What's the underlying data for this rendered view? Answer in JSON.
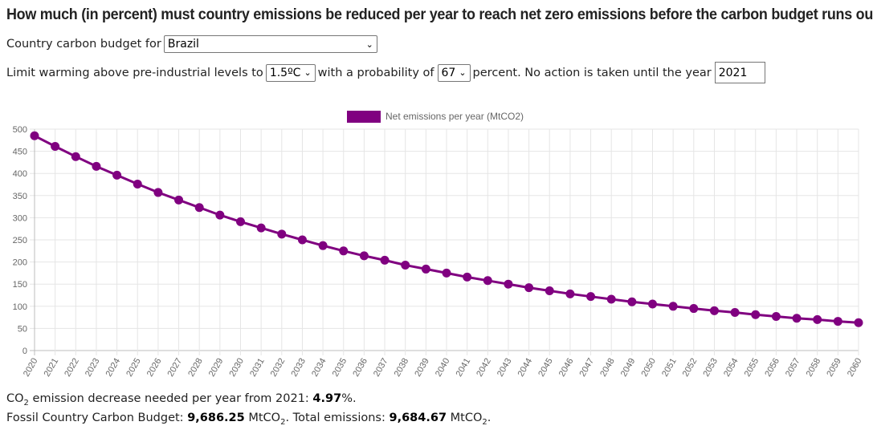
{
  "title": "How much (in percent) must country emissions be reduced per year to reach net zero emissions before the carbon budget runs out?",
  "controls": {
    "country_label": "Country carbon budget for",
    "country_value": "Brazil",
    "warming_label": "Limit warming above pre-industrial levels to",
    "warming_value": "1.5ºC",
    "probability_label": "with a probability of",
    "probability_value": "67",
    "no_action_label": "percent. No action is taken until the year",
    "year_value": "2021"
  },
  "chart_data": {
    "type": "line",
    "legend_position": "top-center",
    "series": [
      {
        "name": "Net emissions per year (MtCO2)",
        "color": "#800080",
        "values": [
          485,
          461,
          438,
          416,
          396,
          376,
          357,
          340,
          323,
          306,
          291,
          277,
          263,
          250,
          237,
          225,
          214,
          204,
          193,
          184,
          175,
          166,
          158,
          150,
          142,
          135,
          128,
          122,
          116,
          110,
          105,
          100,
          95,
          90,
          86,
          81,
          77,
          73,
          70,
          66,
          63
        ]
      }
    ],
    "x": [
      "2020",
      "2021",
      "2022",
      "2023",
      "2024",
      "2025",
      "2026",
      "2027",
      "2028",
      "2029",
      "2030",
      "2031",
      "2032",
      "2033",
      "2034",
      "2035",
      "2036",
      "2037",
      "2038",
      "2039",
      "2040",
      "2041",
      "2042",
      "2043",
      "2044",
      "2045",
      "2046",
      "2047",
      "2048",
      "2049",
      "2050",
      "2051",
      "2052",
      "2053",
      "2054",
      "2055",
      "2056",
      "2057",
      "2058",
      "2059",
      "2060"
    ],
    "ylim": [
      0,
      500
    ],
    "yticks": [
      0,
      50,
      100,
      150,
      200,
      250,
      300,
      350,
      400,
      450,
      500
    ],
    "grid": true
  },
  "footer": {
    "co2_prefix": "CO",
    "co2_sub": "2",
    "decrease_text": " emission decrease needed per year from 2021: ",
    "decrease_value": "4.97",
    "decrease_suffix": "%.",
    "budget_label": "Fossil Country Carbon Budget: ",
    "budget_value": "9,686.25",
    "budget_unit": " MtCO",
    "budget_sub": "2",
    "total_label": ". Total emissions: ",
    "total_value": "9,684.67",
    "total_unit": " MtCO",
    "total_sub": "2",
    "end": "."
  }
}
